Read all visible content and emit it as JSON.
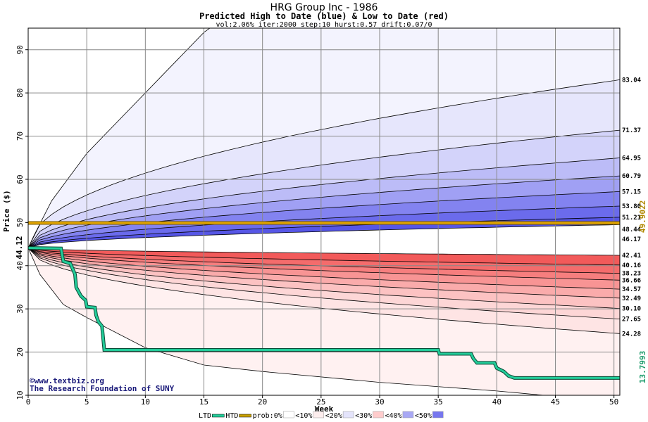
{
  "chart_data": {
    "type": "area",
    "title": "HRG Group Inc - 1986",
    "subtitle": "Predicted High to Date (blue) &  Low to Date (red)",
    "params": "vol:2.06% iter:2000 step:10 hurst:0.57 drift:0.07/0",
    "xlabel": "Week",
    "ylabel": "Price ($)",
    "xlim": [
      0,
      50.5
    ],
    "ylim": [
      10,
      95
    ],
    "xticks": [
      0,
      5,
      10,
      15,
      20,
      25,
      30,
      35,
      40,
      45,
      50
    ],
    "yticks": [
      10,
      20,
      30,
      40,
      50,
      60,
      70,
      80,
      90
    ],
    "grid": true,
    "start_price": 44.12,
    "start_label": "44.12",
    "threshold": 49.9022,
    "threshold_label": "49.9022",
    "final_low": 13.7993,
    "final_low_label": "13.7993",
    "right_labels": [
      "83.04",
      "71.37",
      "64.95",
      "60.79",
      "57.15",
      "53.80",
      "51.21",
      "48.44",
      "46.17",
      "42.41",
      "40.16",
      "38.23",
      "36.66",
      "34.57",
      "32.49",
      "30.10",
      "27.65",
      "24.28"
    ],
    "high_band_ends": [
      49.5,
      51.21,
      53.8,
      57.15,
      60.79,
      64.95,
      71.37,
      83.04
    ],
    "high_outer_curve": [
      [
        0.5,
        47
      ],
      [
        2,
        55
      ],
      [
        5,
        66
      ],
      [
        10,
        80
      ],
      [
        15,
        94
      ],
      [
        15.5,
        95
      ]
    ],
    "low_band_ends": [
      42.41,
      40.16,
      38.23,
      36.66,
      34.57,
      32.49,
      30.1,
      27.65,
      24.28
    ],
    "low_outer_curve": [
      [
        0,
        44.12
      ],
      [
        1,
        38
      ],
      [
        3,
        31
      ],
      [
        5,
        28
      ],
      [
        10,
        21
      ],
      [
        15,
        17
      ],
      [
        20,
        15.5
      ],
      [
        30,
        13
      ],
      [
        40,
        11
      ],
      [
        44,
        10
      ]
    ],
    "ltd_series": {
      "name": "LTD",
      "points": [
        [
          0,
          44.12
        ],
        [
          2.8,
          44
        ],
        [
          3,
          41
        ],
        [
          3.6,
          40.5
        ],
        [
          4,
          38
        ],
        [
          4.1,
          35
        ],
        [
          4.5,
          33
        ],
        [
          4.9,
          32
        ],
        [
          5,
          30.5
        ],
        [
          5.7,
          30.3
        ],
        [
          5.8,
          28.5
        ],
        [
          6,
          27
        ],
        [
          6.3,
          26
        ],
        [
          6.5,
          20.5
        ],
        [
          35,
          20.5
        ],
        [
          35.1,
          19.6
        ],
        [
          37.8,
          19.6
        ],
        [
          38,
          18.5
        ],
        [
          38.3,
          17.5
        ],
        [
          39.8,
          17.5
        ],
        [
          40,
          16.3
        ],
        [
          40.6,
          15.5
        ],
        [
          41,
          14.5
        ],
        [
          41.5,
          14
        ],
        [
          50.5,
          14
        ]
      ]
    },
    "legend": [
      {
        "label": "LTD",
        "kind": "line",
        "color": "#22cc99"
      },
      {
        "label": "HTD",
        "kind": "line",
        "color": "#c8a000"
      },
      {
        "label": "prob:0%",
        "kind": "swatch",
        "color": "#ffffff"
      },
      {
        "label": "<10%",
        "kind": "swatch",
        "color": "#fdeeee"
      },
      {
        "label": "<20%",
        "kind": "swatch",
        "color": "#e4e4fb"
      },
      {
        "label": "<30%",
        "kind": "swatch",
        "color": "#ffcccc"
      },
      {
        "label": "<40%",
        "kind": "swatch",
        "color": "#a8a8f4"
      },
      {
        "label": "<50%",
        "kind": "swatch",
        "color": "#7676ee"
      }
    ],
    "watermark_1": "©www.textbiz.org",
    "watermark_2": "The Research Foundation of SUNY"
  },
  "colors": {
    "blue_bands": [
      "#5656e6",
      "#6b6bec",
      "#8383f0",
      "#a0a0f4",
      "#bcbcf7",
      "#d3d3fa",
      "#e6e6fc",
      "#f3f3fe"
    ],
    "red_bands": [
      "#f25a5a",
      "#f46c6c",
      "#f67e7e",
      "#f89494",
      "#faabab",
      "#fcc2c2",
      "#fdd6d6",
      "#fee4e4",
      "#fff1f1"
    ],
    "threshold_line": "#e0a400",
    "ltd_line": "#22cc99",
    "grid": "#888888",
    "final_low_text": "#1a9a6a",
    "threshold_text": "#b08800",
    "watermark_text": "#1a1a7a"
  }
}
